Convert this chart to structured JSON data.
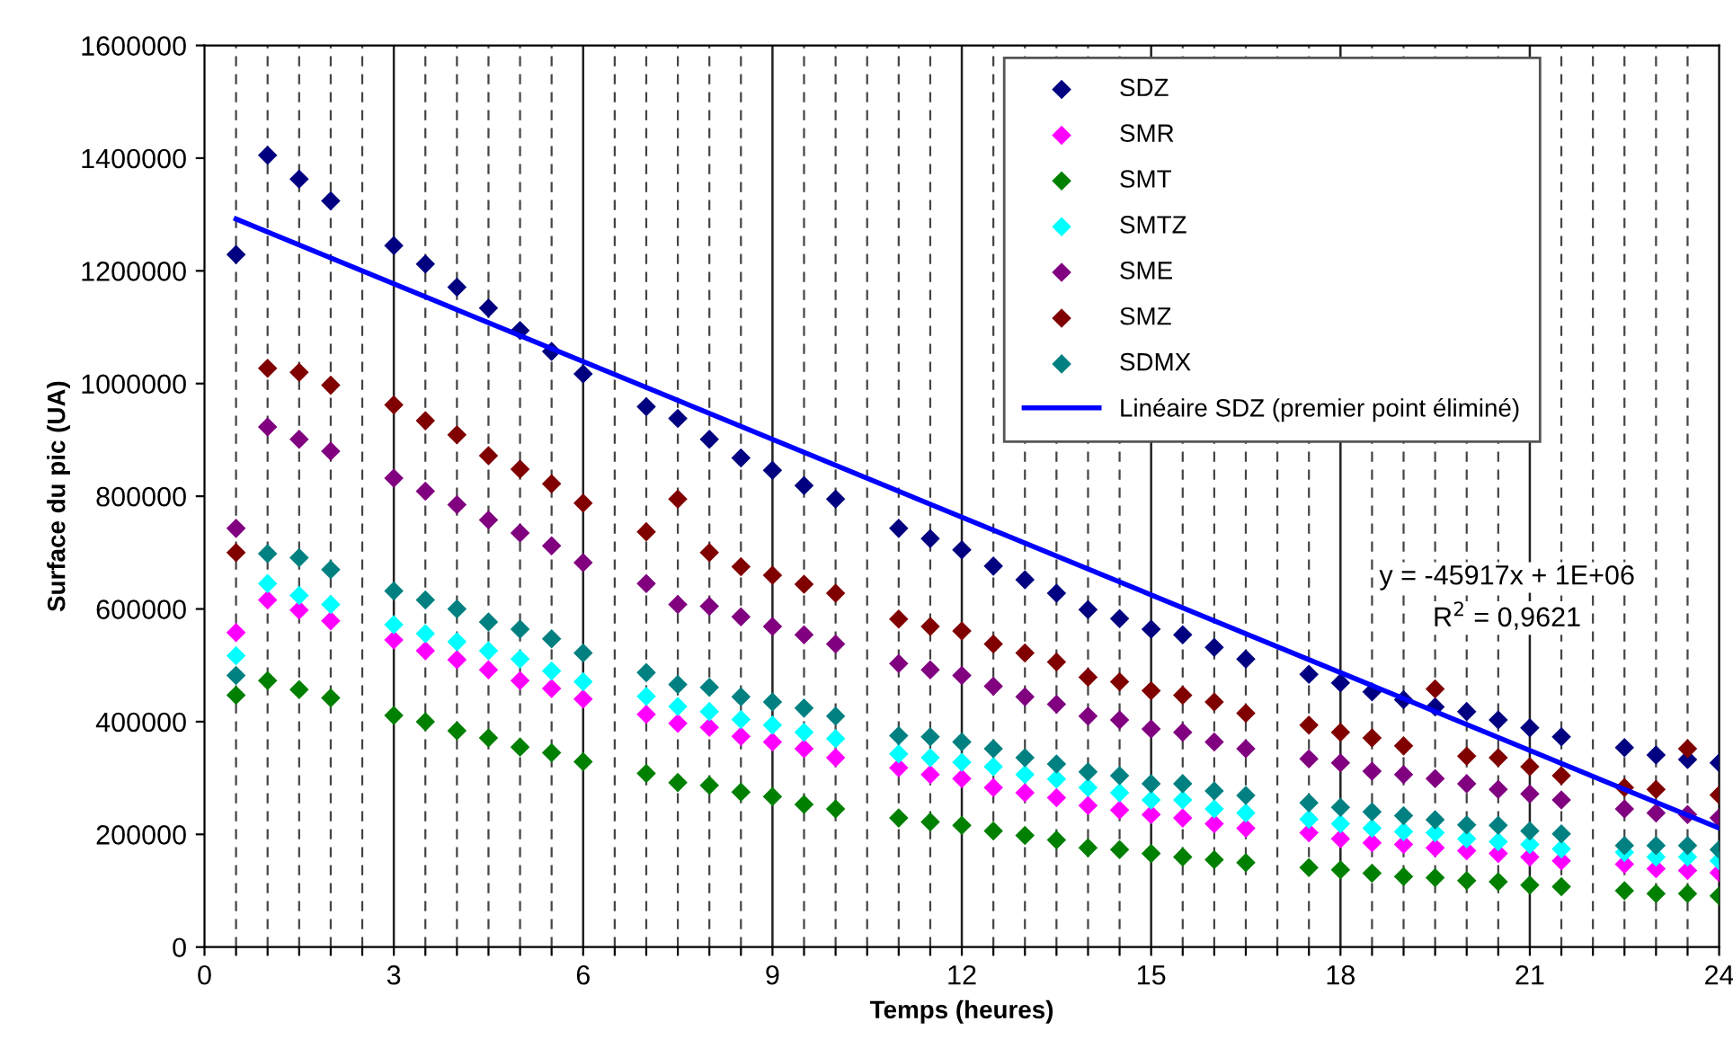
{
  "chart_data": {
    "type": "scatter",
    "xlabel": "Temps (heures)",
    "ylabel": "Surface du pic (UA)",
    "x": [
      0.5,
      1,
      1.5,
      2,
      3,
      3.5,
      4,
      4.5,
      5,
      5.5,
      6,
      7,
      7.5,
      8,
      8.5,
      9,
      9.5,
      10,
      11,
      11.5,
      12,
      12.5,
      13,
      13.5,
      14,
      14.5,
      15,
      15.5,
      16,
      16.5,
      17.5,
      18,
      18.5,
      19,
      19.5,
      20,
      20.5,
      21,
      21.5,
      22.5,
      23,
      23.5,
      24
    ],
    "series": [
      {
        "name": "SDZ",
        "color": "#000080",
        "values": [
          1229000,
          1405000,
          1363000,
          1324000,
          1245000,
          1212000,
          1171000,
          1134000,
          1094000,
          1057000,
          1017000,
          959000,
          938000,
          901000,
          868000,
          846000,
          819000,
          795000,
          743000,
          725000,
          705000,
          676000,
          652000,
          628000,
          599000,
          583000,
          564000,
          554000,
          532000,
          511000,
          484000,
          469000,
          453000,
          439000,
          426000,
          418000,
          403000,
          389000,
          373000,
          354000,
          341000,
          333000,
          327000
        ]
      },
      {
        "name": "SMR",
        "color": "#ff00ff",
        "values": [
          558000,
          616000,
          598000,
          579000,
          545000,
          526000,
          510000,
          492000,
          473000,
          459000,
          440000,
          413000,
          397000,
          390000,
          374000,
          364000,
          352000,
          336000,
          318000,
          306000,
          299000,
          283000,
          274000,
          265000,
          251000,
          243000,
          235000,
          229000,
          219000,
          211000,
          203000,
          192000,
          185000,
          182000,
          176000,
          171000,
          166000,
          160000,
          153000,
          147000,
          139000,
          136000,
          132000
        ]
      },
      {
        "name": "SMT",
        "color": "#008000",
        "values": [
          447000,
          473000,
          457000,
          442000,
          411000,
          400000,
          384000,
          371000,
          355000,
          345000,
          329000,
          308000,
          292000,
          287000,
          275000,
          267000,
          253000,
          245000,
          229000,
          222000,
          216000,
          206000,
          198000,
          190000,
          176000,
          173000,
          166000,
          160000,
          155000,
          150000,
          141000,
          137000,
          131000,
          125000,
          123000,
          118000,
          116000,
          110000,
          107000,
          100000,
          95000,
          95000,
          91000
        ]
      },
      {
        "name": "SMTZ",
        "color": "#00ffff",
        "values": [
          517000,
          645000,
          624000,
          608000,
          572000,
          556000,
          542000,
          526000,
          511000,
          490000,
          471000,
          445000,
          427000,
          418000,
          404000,
          394000,
          381000,
          370000,
          343000,
          336000,
          328000,
          320000,
          306000,
          298000,
          283000,
          274000,
          261000,
          261000,
          245000,
          238000,
          227000,
          219000,
          211000,
          205000,
          203000,
          192000,
          187000,
          182000,
          174000,
          168000,
          160000,
          160000,
          153000
        ]
      },
      {
        "name": "SME",
        "color": "#800080",
        "values": [
          743000,
          923000,
          901000,
          880000,
          832000,
          809000,
          785000,
          758000,
          735000,
          712000,
          682000,
          645000,
          608000,
          605000,
          586000,
          569000,
          554000,
          538000,
          503000,
          492000,
          482000,
          463000,
          444000,
          431000,
          410000,
          403000,
          387000,
          381000,
          364000,
          352000,
          334000,
          327000,
          312000,
          306000,
          299000,
          290000,
          280000,
          272000,
          261000,
          245000,
          238000,
          235000,
          229000
        ]
      },
      {
        "name": "SMZ",
        "color": "#800000",
        "values": [
          700000,
          1027000,
          1020000,
          997000,
          962000,
          934000,
          909000,
          872000,
          848000,
          822000,
          788000,
          737000,
          795000,
          700000,
          675000,
          660000,
          644000,
          628000,
          582000,
          569000,
          561000,
          538000,
          522000,
          506000,
          479000,
          471000,
          455000,
          447000,
          435000,
          415000,
          394000,
          381000,
          371000,
          357000,
          458000,
          339000,
          336000,
          320000,
          304000,
          283000,
          280000,
          352000,
          270000
        ]
      },
      {
        "name": "SDMX",
        "color": "#008080",
        "values": [
          482000,
          698000,
          691000,
          670000,
          632000,
          616000,
          600000,
          577000,
          564000,
          547000,
          522000,
          487000,
          466000,
          461000,
          444000,
          435000,
          424000,
          410000,
          375000,
          373000,
          364000,
          352000,
          336000,
          325000,
          311000,
          304000,
          290000,
          290000,
          277000,
          269000,
          256000,
          248000,
          240000,
          233000,
          226000,
          217000,
          216000,
          206000,
          201000,
          180000,
          180000,
          180000,
          173000
        ]
      },
      {
        "name": "Linéaire SDZ (premier point éliminé)",
        "type": "line",
        "marker": "none",
        "color": "#0000ff",
        "x": [
          0.5,
          24
        ],
        "values": [
          1292000,
          211000
        ]
      }
    ],
    "annotations": [
      "y = -45917x + 1E+06",
      "R$^{2}$ = 0,9621"
    ],
    "marker": "diamond",
    "legend": "top right",
    "grid": "x",
    "xlim": [
      0,
      24
    ],
    "ylim": [
      0,
      1600000
    ],
    "xticks": [
      0,
      {
        "value": 0.5,
        "label": null
      },
      {
        "value": 1,
        "label": null
      },
      {
        "value": 1.5,
        "label": null
      },
      {
        "value": 2,
        "label": null
      },
      {
        "value": 2.5,
        "label": null
      },
      3,
      {
        "value": 3.5,
        "label": null
      },
      {
        "value": 4,
        "label": null
      },
      {
        "value": 4.5,
        "label": null
      },
      {
        "value": 5,
        "label": null
      },
      {
        "value": 5.5,
        "label": null
      },
      6,
      {
        "value": 6.5,
        "label": null
      },
      {
        "value": 7,
        "label": null
      },
      {
        "value": 7.5,
        "label": null
      },
      {
        "value": 8,
        "label": null
      },
      {
        "value": 8.5,
        "label": null
      },
      9,
      {
        "value": 9.5,
        "label": null
      },
      {
        "value": 10,
        "label": null
      },
      {
        "value": 10.5,
        "label": null
      },
      {
        "value": 11,
        "label": null
      },
      {
        "value": 11.5,
        "label": null
      },
      12,
      {
        "value": 12.5,
        "label": null
      },
      {
        "value": 13,
        "label": null
      },
      {
        "value": 13.5,
        "label": null
      },
      {
        "value": 14,
        "label": null
      },
      {
        "value": 14.5,
        "label": null
      },
      15,
      {
        "value": 15.5,
        "label": null
      },
      {
        "value": 16,
        "label": null
      },
      {
        "value": 16.5,
        "label": null
      },
      {
        "value": 17,
        "label": null
      },
      {
        "value": 17.5,
        "label": null
      },
      18,
      {
        "value": 18.5,
        "label": null
      },
      {
        "value": 19,
        "label": null
      },
      {
        "value": 19.5,
        "label": null
      },
      {
        "value": 20,
        "label": null
      },
      {
        "value": 20.5,
        "label": null
      },
      21,
      {
        "value": 21.5,
        "label": null
      },
      {
        "value": 22,
        "label": null
      },
      {
        "value": 22.5,
        "label": null
      },
      {
        "value": 23,
        "label": null
      },
      {
        "value": 23.5,
        "label": null
      },
      24
    ],
    "yticks": [
      0,
      200000,
      400000,
      600000,
      800000,
      1000000,
      1200000,
      1400000,
      1600000
    ]
  }
}
